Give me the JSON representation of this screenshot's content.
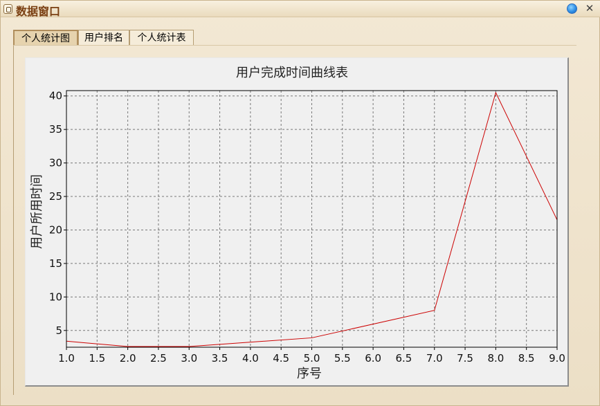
{
  "window": {
    "title": "数据窗口",
    "icons": {
      "app": "app-icon",
      "minimize": "minimize-icon",
      "close": "close-icon"
    },
    "close_glyph": "✕"
  },
  "tabs": [
    {
      "label": "个人统计图",
      "active": true
    },
    {
      "label": "用户排名",
      "active": false
    },
    {
      "label": "个人统计表",
      "active": false
    }
  ],
  "chart_data": {
    "type": "line",
    "title": "用户完成时间曲线表",
    "xlabel": "序号",
    "ylabel": "用户所用时间",
    "x": [
      1,
      2,
      3,
      5,
      7,
      8,
      9
    ],
    "series": [
      {
        "values": [
          3.4,
          2.6,
          2.6,
          3.9,
          8.0,
          40.5,
          21.5
        ],
        "color": "#cc0000"
      }
    ],
    "xlim": [
      1.0,
      9.0
    ],
    "ylim": [
      2.5,
      40.8
    ],
    "x_ticks": [
      "1.0",
      "1.5",
      "2.0",
      "2.5",
      "3.0",
      "3.5",
      "4.0",
      "4.5",
      "5.0",
      "5.5",
      "6.0",
      "6.5",
      "7.0",
      "7.5",
      "8.0",
      "8.5",
      "9.0"
    ],
    "y_ticks": [
      "5",
      "10",
      "15",
      "20",
      "25",
      "30",
      "35",
      "40"
    ],
    "grid": true
  }
}
